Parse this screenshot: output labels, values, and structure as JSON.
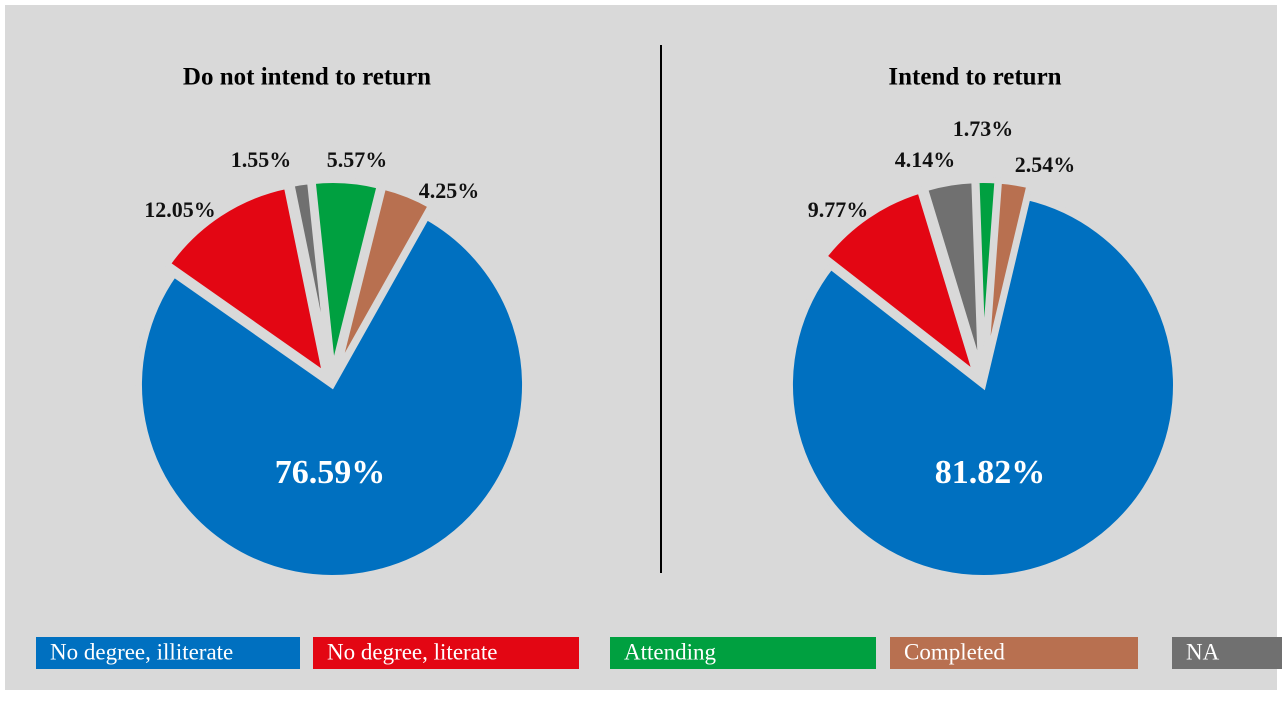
{
  "legend": [
    {
      "name": "No degree, illiterate",
      "color": "#0070c0"
    },
    {
      "name": "No degree, literate",
      "color": "#e30613"
    },
    {
      "name": "Attending",
      "color": "#00a040"
    },
    {
      "name": "Completed",
      "color": "#b87050"
    },
    {
      "name": "NA",
      "color": "#707070"
    }
  ],
  "chart_data": [
    {
      "type": "pie",
      "title": "Do not intend to return",
      "values": [
        76.59,
        12.05,
        5.57,
        4.25,
        1.55
      ],
      "value_labels": [
        "76.59%",
        "12.05%",
        "5.57%",
        "4.25%",
        "1.55%"
      ]
    },
    {
      "type": "pie",
      "title": "Intend to return",
      "values": [
        81.82,
        9.77,
        1.73,
        2.54,
        4.14
      ],
      "value_labels": [
        "81.82%",
        "9.77%",
        "1.73%",
        "2.54%",
        "4.14%"
      ]
    }
  ]
}
